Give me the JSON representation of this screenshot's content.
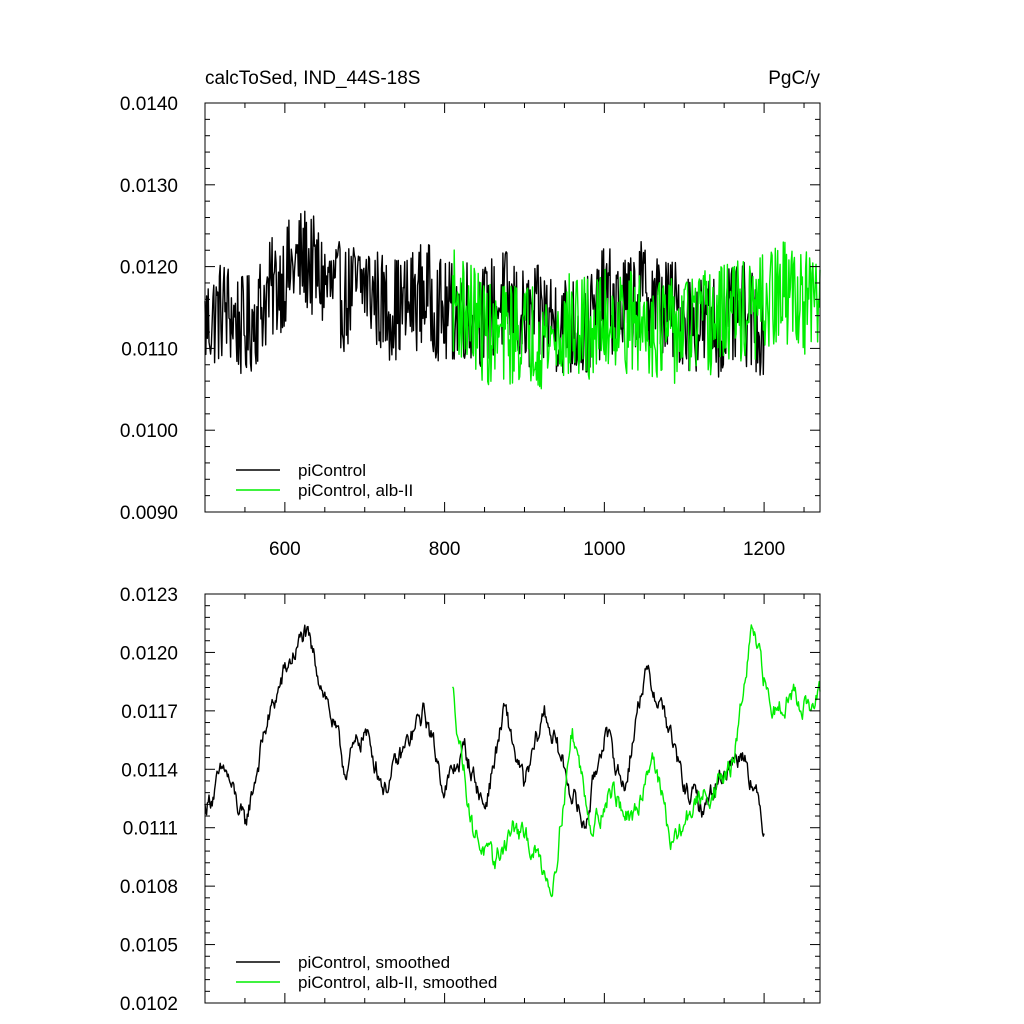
{
  "header": {
    "title_left": "calcToSed, IND_44S-18S",
    "title_right": "PgC/y"
  },
  "colors": {
    "piControl": "#000000",
    "alb": "#00ee00"
  },
  "chart_data": [
    {
      "type": "line",
      "title": "calcToSed, IND_44S-18S",
      "units": "PgC/y",
      "xlim": [
        500,
        1270
      ],
      "ylim": [
        0.009,
        0.014
      ],
      "x_ticks": [
        600,
        800,
        1000,
        1200
      ],
      "x_tick_labels": [
        "600",
        "800",
        "1000",
        "1200"
      ],
      "y_ticks": [
        0.009,
        0.01,
        0.011,
        0.012,
        0.013,
        0.014
      ],
      "y_tick_labels": [
        "0.0090",
        "0.0100",
        "0.0110",
        "0.0120",
        "0.0130",
        "0.0140"
      ],
      "legend": {
        "position": "bottom-left",
        "entries": [
          "piControl",
          "piControl, alb-II"
        ]
      },
      "series": [
        {
          "name": "piControl",
          "color": "#000000",
          "x_range": [
            500,
            1200
          ],
          "x_step": 25,
          "values": [
            0.0113,
            0.0115,
            0.0112,
            0.0116,
            0.0119,
            0.0121,
            0.0118,
            0.0116,
            0.0118,
            0.0115,
            0.0115,
            0.0117,
            0.0114,
            0.0115,
            0.0114,
            0.0116,
            0.0113,
            0.0114,
            0.0113,
            0.0112,
            0.0116,
            0.0115,
            0.0117,
            0.0115,
            0.0114,
            0.0113,
            0.0113,
            0.0114,
            0.0113
          ]
        },
        {
          "name": "piControl, alb-II",
          "color": "#00ee00",
          "x_range": [
            810,
            1270
          ],
          "x_step": 25,
          "values": [
            0.0116,
            0.0114,
            0.0111,
            0.0112,
            0.0112,
            0.0111,
            0.0113,
            0.0112,
            0.0114,
            0.0113,
            0.0113,
            0.0112,
            0.0113,
            0.0113,
            0.0115,
            0.0114,
            0.0116,
            0.0117,
            0.0115,
            0.0116
          ]
        }
      ]
    },
    {
      "type": "line",
      "xlim": [
        500,
        1270
      ],
      "ylim": [
        0.0102,
        0.0123
      ],
      "x_ticks": [
        600,
        800,
        1000,
        1200
      ],
      "x_tick_labels": [],
      "y_ticks": [
        0.0102,
        0.0105,
        0.0108,
        0.0111,
        0.0114,
        0.0117,
        0.012,
        0.0123
      ],
      "y_tick_labels": [
        "0.0102",
        "0.0105",
        "0.0108",
        "0.0111",
        "0.0114",
        "0.0117",
        "0.0120",
        "0.0123"
      ],
      "legend": {
        "position": "bottom-left",
        "entries": [
          "piControl, smoothed",
          "piControl, alb-II, smoothed"
        ]
      },
      "series": [
        {
          "name": "piControl, smoothed",
          "color": "#000000",
          "x_range": [
            500,
            1200
          ],
          "x_step": 25,
          "values": [
            0.0112,
            0.0114,
            0.0111,
            0.0116,
            0.0119,
            0.0121,
            0.0118,
            0.0114,
            0.0116,
            0.0113,
            0.0115,
            0.0117,
            0.0113,
            0.0115,
            0.0112,
            0.0117,
            0.0113,
            0.0117,
            0.0114,
            0.0111,
            0.0116,
            0.0113,
            0.0119,
            0.0117,
            0.0113,
            0.0112,
            0.0114,
            0.0115,
            0.0111
          ]
        },
        {
          "name": "piControl, alb-II, smoothed",
          "color": "#00ee00",
          "x_range": [
            810,
            1270
          ],
          "x_step": 25,
          "values": [
            0.0118,
            0.0111,
            0.0109,
            0.0111,
            0.011,
            0.0108,
            0.0116,
            0.0111,
            0.0113,
            0.0111,
            0.0115,
            0.011,
            0.0112,
            0.0113,
            0.0114,
            0.0121,
            0.0117,
            0.0118,
            0.0117,
            0.0119
          ]
        }
      ]
    }
  ]
}
